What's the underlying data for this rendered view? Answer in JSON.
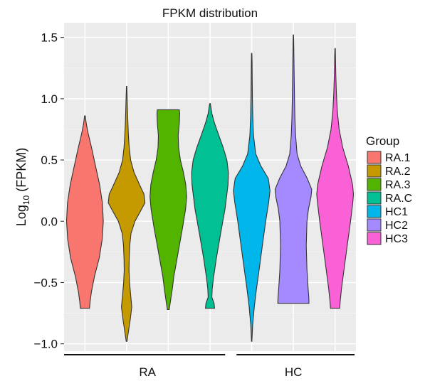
{
  "chart_data": {
    "type": "violin",
    "title": "FPKM distribution",
    "ylabel": "Log₁₀ (FPKM)",
    "ylabel_base": "Log",
    "ylabel_sub": "10",
    "ylabel_rest": " (FPKM)",
    "xlabel": "",
    "ylim": [
      -1.06,
      1.62
    ],
    "yticks": [
      1.5,
      1.0,
      0.5,
      0.0,
      -0.5,
      -1.0
    ],
    "ytick_labels": [
      "1.5",
      "1.0",
      "0.5",
      "0.0",
      "−0.5",
      "−1.0"
    ],
    "grid": true,
    "legend_title": "Group",
    "legend_position": "right",
    "groups": [
      {
        "label": "RA",
        "members": [
          "RA.1",
          "RA.2",
          "RA.3",
          "RA.C"
        ]
      },
      {
        "label": "HC",
        "members": [
          "HC1",
          "HC2",
          "HC3"
        ]
      }
    ],
    "series": [
      {
        "name": "RA.1",
        "color": "#F8766D",
        "min": -0.71,
        "max": 0.86,
        "profile": [
          [
            -0.71,
            0.25
          ],
          [
            -0.66,
            0.28
          ],
          [
            -0.58,
            0.35
          ],
          [
            -0.45,
            0.52
          ],
          [
            -0.3,
            0.78
          ],
          [
            -0.15,
            0.94
          ],
          [
            0.0,
            1.0
          ],
          [
            0.15,
            0.95
          ],
          [
            0.3,
            0.8
          ],
          [
            0.45,
            0.58
          ],
          [
            0.6,
            0.36
          ],
          [
            0.72,
            0.17
          ],
          [
            0.8,
            0.07
          ],
          [
            0.86,
            0.02
          ]
        ]
      },
      {
        "name": "RA.2",
        "color": "#C49A00",
        "min": -0.98,
        "max": 1.1,
        "profile": [
          [
            -0.98,
            0.02
          ],
          [
            -0.9,
            0.1
          ],
          [
            -0.8,
            0.2
          ],
          [
            -0.7,
            0.28
          ],
          [
            -0.6,
            0.22
          ],
          [
            -0.5,
            0.16
          ],
          [
            -0.4,
            0.13
          ],
          [
            -0.3,
            0.14
          ],
          [
            -0.2,
            0.17
          ],
          [
            -0.1,
            0.24
          ],
          [
            0.0,
            0.45
          ],
          [
            0.1,
            0.82
          ],
          [
            0.15,
            1.0
          ],
          [
            0.22,
            0.95
          ],
          [
            0.3,
            0.7
          ],
          [
            0.4,
            0.4
          ],
          [
            0.5,
            0.22
          ],
          [
            0.6,
            0.14
          ],
          [
            0.7,
            0.1
          ],
          [
            0.8,
            0.07
          ],
          [
            0.9,
            0.05
          ],
          [
            1.0,
            0.03
          ],
          [
            1.1,
            0.01
          ]
        ]
      },
      {
        "name": "RA.3",
        "color": "#53B400",
        "min": -0.72,
        "max": 0.91,
        "profile": [
          [
            -0.72,
            0.05
          ],
          [
            -0.65,
            0.12
          ],
          [
            -0.55,
            0.22
          ],
          [
            -0.45,
            0.3
          ],
          [
            -0.35,
            0.42
          ],
          [
            -0.2,
            0.6
          ],
          [
            -0.05,
            0.78
          ],
          [
            0.1,
            0.94
          ],
          [
            0.2,
            1.0
          ],
          [
            0.3,
            0.95
          ],
          [
            0.4,
            0.82
          ],
          [
            0.5,
            0.66
          ],
          [
            0.6,
            0.56
          ],
          [
            0.7,
            0.54
          ],
          [
            0.8,
            0.6
          ],
          [
            0.88,
            0.62
          ],
          [
            0.91,
            0.6
          ]
        ]
      },
      {
        "name": "RA.C",
        "color": "#00C094",
        "min": -0.71,
        "max": 0.96,
        "profile": [
          [
            -0.71,
            0.25
          ],
          [
            -0.67,
            0.22
          ],
          [
            -0.62,
            0.1
          ],
          [
            -0.55,
            0.12
          ],
          [
            -0.45,
            0.2
          ],
          [
            -0.3,
            0.35
          ],
          [
            -0.1,
            0.58
          ],
          [
            0.1,
            0.82
          ],
          [
            0.3,
            0.98
          ],
          [
            0.4,
            1.0
          ],
          [
            0.5,
            0.92
          ],
          [
            0.6,
            0.72
          ],
          [
            0.7,
            0.48
          ],
          [
            0.8,
            0.25
          ],
          [
            0.88,
            0.1
          ],
          [
            0.96,
            0.02
          ]
        ]
      },
      {
        "name": "HC1",
        "color": "#00B6EB",
        "min": -0.98,
        "max": 1.37,
        "profile": [
          [
            -0.98,
            0.01
          ],
          [
            -0.85,
            0.05
          ],
          [
            -0.7,
            0.14
          ],
          [
            -0.55,
            0.26
          ],
          [
            -0.4,
            0.4
          ],
          [
            -0.2,
            0.58
          ],
          [
            0.0,
            0.76
          ],
          [
            0.15,
            0.92
          ],
          [
            0.25,
            1.0
          ],
          [
            0.35,
            0.9
          ],
          [
            0.45,
            0.5
          ],
          [
            0.55,
            0.22
          ],
          [
            0.7,
            0.1
          ],
          [
            0.85,
            0.06
          ],
          [
            1.0,
            0.04
          ],
          [
            1.15,
            0.03
          ],
          [
            1.3,
            0.02
          ],
          [
            1.37,
            0.01
          ]
        ]
      },
      {
        "name": "HC2",
        "color": "#A58AFF",
        "min": -0.67,
        "max": 1.52,
        "profile": [
          [
            -0.67,
            0.85
          ],
          [
            -0.62,
            0.84
          ],
          [
            -0.55,
            0.8
          ],
          [
            -0.4,
            0.74
          ],
          [
            -0.2,
            0.7
          ],
          [
            0.0,
            0.74
          ],
          [
            0.1,
            0.82
          ],
          [
            0.2,
            0.96
          ],
          [
            0.26,
            1.0
          ],
          [
            0.35,
            0.75
          ],
          [
            0.45,
            0.4
          ],
          [
            0.55,
            0.2
          ],
          [
            0.7,
            0.12
          ],
          [
            0.85,
            0.08
          ],
          [
            1.0,
            0.06
          ],
          [
            1.2,
            0.04
          ],
          [
            1.4,
            0.02
          ],
          [
            1.52,
            0.01
          ]
        ]
      },
      {
        "name": "HC3",
        "color": "#FB61D7",
        "min": -0.71,
        "max": 1.41,
        "profile": [
          [
            -0.71,
            0.25
          ],
          [
            -0.65,
            0.28
          ],
          [
            -0.55,
            0.35
          ],
          [
            -0.4,
            0.48
          ],
          [
            -0.2,
            0.66
          ],
          [
            0.0,
            0.84
          ],
          [
            0.15,
            0.96
          ],
          [
            0.22,
            1.0
          ],
          [
            0.3,
            0.95
          ],
          [
            0.45,
            0.72
          ],
          [
            0.6,
            0.42
          ],
          [
            0.75,
            0.22
          ],
          [
            0.9,
            0.12
          ],
          [
            1.05,
            0.07
          ],
          [
            1.2,
            0.04
          ],
          [
            1.35,
            0.02
          ],
          [
            1.41,
            0.01
          ]
        ]
      }
    ]
  }
}
